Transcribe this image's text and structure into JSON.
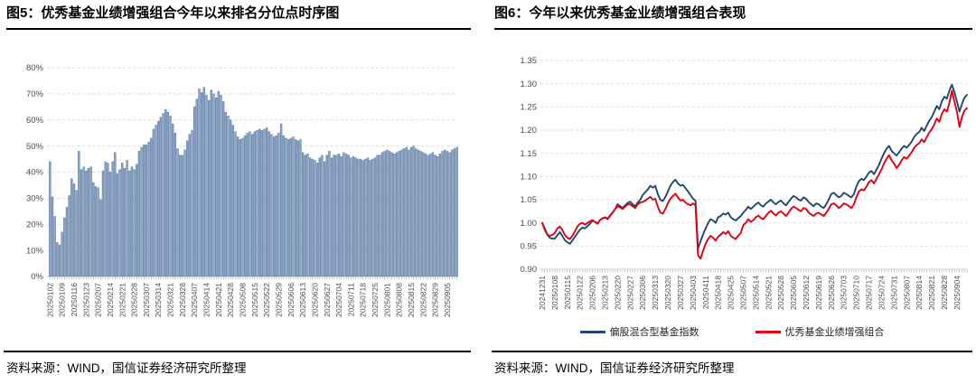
{
  "chart_data": [
    {
      "type": "bar",
      "title": "图5：优秀基金业绩增强组合今年以来排名分位点时序图",
      "source": "资料来源：WIND，国信证券经济研究所整理",
      "ylabel": "",
      "xlabel": "",
      "ylim": [
        0,
        80
      ],
      "y_ticks": [
        "0%",
        "10%",
        "20%",
        "30%",
        "40%",
        "50%",
        "60%",
        "70%",
        "80%"
      ],
      "grid": "dashed-horizontal",
      "bar_fill": "#8FA6C3",
      "bar_edge": "#54719B",
      "grid_color": "#DBDBDB",
      "axis_text_color": "#4D4D4D",
      "bars_per_label": 5,
      "x_labels": [
        "20250102",
        "20250109",
        "20250116",
        "20250123",
        "20250207",
        "20250214",
        "20250221",
        "20250228",
        "20250307",
        "20250314",
        "20250321",
        "20250328",
        "20250407",
        "20250414",
        "20250421",
        "20250428",
        "20250508",
        "20250515",
        "20250522",
        "20250529",
        "20250606",
        "20250613",
        "20250620",
        "20250627",
        "20250704",
        "20250711",
        "20250718",
        "20250725",
        "20250801",
        "20250808",
        "20250815",
        "20250822",
        "20250829",
        "20250905"
      ],
      "values": [
        44,
        30.5,
        23,
        13,
        12,
        17,
        22.5,
        26.5,
        31,
        37.5,
        35.5,
        33,
        48,
        41,
        42,
        40.5,
        41.5,
        42,
        36,
        34.5,
        34,
        29.5,
        40.5,
        44,
        43.5,
        40,
        44,
        47.5,
        39.5,
        41,
        43.5,
        41.5,
        44.5,
        40.5,
        42,
        41,
        43,
        48,
        49.5,
        50.5,
        50.5,
        51.5,
        53,
        56.5,
        58,
        59.5,
        61,
        62.5,
        64,
        63,
        61.5,
        58.5,
        55,
        49,
        46.5,
        46.5,
        48.5,
        52,
        54.5,
        56,
        65,
        68,
        72,
        70.5,
        72.5,
        69.5,
        67.5,
        71.5,
        70,
        68.5,
        71,
        69.5,
        67,
        63,
        61.5,
        60,
        58,
        55.5,
        53.5,
        52.5,
        53,
        54,
        55,
        55.5,
        54.5,
        55.5,
        56,
        56.5,
        56,
        56.5,
        57,
        55.5,
        54.5,
        53.5,
        54,
        55,
        58.5,
        54,
        53,
        52.5,
        53,
        53.5,
        52.5,
        52,
        52.5,
        47.5,
        46.5,
        47,
        45.5,
        45,
        44.5,
        43.5,
        45.5,
        46.5,
        44,
        46.5,
        48,
        45.5,
        46.5,
        46.5,
        47,
        46,
        47.5,
        47,
        46.5,
        45.5,
        46,
        45.5,
        45,
        45,
        44.5,
        45,
        45.5,
        44.5,
        45,
        45.5,
        46.5,
        46.5,
        47.5,
        48,
        48.5,
        48,
        47.5,
        47,
        47.5,
        48,
        48.5,
        49,
        49.5,
        48.5,
        49.5,
        50,
        49,
        48.5,
        48,
        47.5,
        47,
        46.5,
        47,
        47.5,
        46.5,
        46,
        47,
        48,
        48.5,
        48,
        47.5,
        48.5,
        49,
        49.5
      ]
    },
    {
      "type": "line",
      "title": "图6：今年以来优秀基金业绩增强组合表现",
      "source": "资料来源：WIND，国信证券经济研究所整理",
      "ylabel": "",
      "xlabel": "",
      "ylim": [
        0.9,
        1.35
      ],
      "y_ticks": [
        "0.90",
        "0.95",
        "1.00",
        "1.05",
        "1.10",
        "1.15",
        "1.20",
        "1.25",
        "1.30",
        "1.35"
      ],
      "grid": "dashed-horizontal",
      "grid_color": "#DBDBDB",
      "axis_text_color": "#4D4D4D",
      "legend_position": "bottom",
      "points_per_label": 5,
      "x_labels": [
        "20241231",
        "20250108",
        "20250115",
        "20250122",
        "20250206",
        "20250213",
        "20250220",
        "20250227",
        "20250306",
        "20250313",
        "20250320",
        "20250327",
        "20250403",
        "20250411",
        "20250418",
        "20250425",
        "20250507",
        "20250514",
        "20250521",
        "20250528",
        "20250605",
        "20250612",
        "20250619",
        "20250626",
        "20250703",
        "20250710",
        "20250717",
        "20250724",
        "20250731",
        "20250807",
        "20250814",
        "20250821",
        "20250828",
        "20250904"
      ],
      "series": [
        {
          "name": "偏股混合型基金指数",
          "color": "#1E4874",
          "values": [
            1.0,
            0.988,
            0.975,
            0.968,
            0.966,
            0.966,
            0.973,
            0.98,
            0.972,
            0.963,
            0.958,
            0.955,
            0.962,
            0.97,
            0.978,
            0.985,
            0.99,
            0.988,
            0.993,
            0.998,
            1.005,
            1.002,
            0.998,
            1.006,
            1.01,
            1.012,
            1.008,
            1.015,
            1.022,
            1.03,
            1.04,
            1.036,
            1.032,
            1.038,
            1.043,
            1.046,
            1.04,
            1.036,
            1.044,
            1.05,
            1.06,
            1.066,
            1.072,
            1.08,
            1.076,
            1.08,
            1.062,
            1.05,
            1.047,
            1.056,
            1.068,
            1.08,
            1.088,
            1.093,
            1.085,
            1.08,
            1.082,
            1.075,
            1.068,
            1.06,
            1.052,
            1.048,
            0.945,
            0.96,
            0.975,
            0.988,
            1.0,
            1.008,
            1.005,
            1.0,
            1.012,
            1.015,
            1.02,
            1.018,
            1.022,
            1.012,
            1.008,
            1.005,
            1.01,
            1.015,
            1.022,
            1.028,
            1.035,
            1.03,
            1.035,
            1.04,
            1.044,
            1.038,
            1.035,
            1.042,
            1.046,
            1.05,
            1.044,
            1.04,
            1.045,
            1.048,
            1.042,
            1.038,
            1.045,
            1.052,
            1.058,
            1.055,
            1.05,
            1.048,
            1.055,
            1.052,
            1.045,
            1.04,
            1.036,
            1.042,
            1.04,
            1.035,
            1.032,
            1.04,
            1.05,
            1.062,
            1.065,
            1.06,
            1.055,
            1.058,
            1.065,
            1.062,
            1.058,
            1.055,
            1.062,
            1.078,
            1.09,
            1.095,
            1.092,
            1.1,
            1.108,
            1.112,
            1.105,
            1.115,
            1.125,
            1.138,
            1.15,
            1.16,
            1.166,
            1.155,
            1.15,
            1.145,
            1.152,
            1.16,
            1.166,
            1.162,
            1.168,
            1.175,
            1.185,
            1.192,
            1.196,
            1.205,
            1.198,
            1.21,
            1.22,
            1.228,
            1.24,
            1.252,
            1.245,
            1.262,
            1.272,
            1.268,
            1.285,
            1.298,
            1.282,
            1.262,
            1.24,
            1.256,
            1.27,
            1.276
          ]
        },
        {
          "name": "优秀基金业绩增强组合",
          "color": "#E2000F",
          "values": [
            1.0,
            0.985,
            0.975,
            0.972,
            0.974,
            0.978,
            0.988,
            0.992,
            0.985,
            0.974,
            0.968,
            0.965,
            0.972,
            0.982,
            0.992,
            0.998,
            1.0,
            0.996,
            1.0,
            1.003,
            1.006,
            1.002,
            0.999,
            1.006,
            1.01,
            1.012,
            1.009,
            1.016,
            1.023,
            1.03,
            1.036,
            1.033,
            1.03,
            1.035,
            1.04,
            1.04,
            1.036,
            1.032,
            1.04,
            1.044,
            1.045,
            1.048,
            1.052,
            1.056,
            1.05,
            1.052,
            1.035,
            1.022,
            1.02,
            1.03,
            1.042,
            1.052,
            1.058,
            1.063,
            1.055,
            1.048,
            1.05,
            1.044,
            1.04,
            1.038,
            1.042,
            1.038,
            0.93,
            0.923,
            0.94,
            0.955,
            0.965,
            0.972,
            0.968,
            0.962,
            0.97,
            0.975,
            0.98,
            0.976,
            0.982,
            0.972,
            0.968,
            0.965,
            0.972,
            0.978,
            0.995,
            1.0,
            1.008,
            1.002,
            1.006,
            1.012,
            1.016,
            1.01,
            1.008,
            1.015,
            1.022,
            1.026,
            1.02,
            1.016,
            1.022,
            1.025,
            1.02,
            1.015,
            1.022,
            1.03,
            1.035,
            1.032,
            1.028,
            1.025,
            1.032,
            1.03,
            1.022,
            1.018,
            1.015,
            1.02,
            1.022,
            1.018,
            1.015,
            1.022,
            1.03,
            1.04,
            1.042,
            1.038,
            1.032,
            1.036,
            1.042,
            1.04,
            1.036,
            1.032,
            1.04,
            1.055,
            1.068,
            1.072,
            1.07,
            1.078,
            1.088,
            1.092,
            1.085,
            1.095,
            1.105,
            1.115,
            1.128,
            1.138,
            1.146,
            1.135,
            1.128,
            1.118,
            1.125,
            1.135,
            1.142,
            1.138,
            1.145,
            1.152,
            1.162,
            1.168,
            1.172,
            1.18,
            1.174,
            1.185,
            1.195,
            1.202,
            1.212,
            1.225,
            1.218,
            1.235,
            1.245,
            1.24,
            1.258,
            1.285,
            1.262,
            1.24,
            1.207,
            1.228,
            1.242,
            1.247
          ]
        }
      ]
    }
  ]
}
